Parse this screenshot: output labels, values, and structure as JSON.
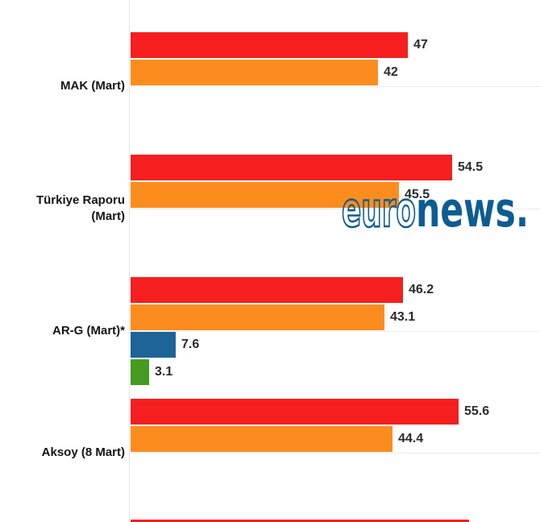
{
  "chart_data": {
    "type": "bar",
    "orientation": "horizontal",
    "title": "",
    "xlabel": "",
    "ylabel": "",
    "xlim": [
      0,
      69.4
    ],
    "grid": "light horizontal line at each category tick",
    "legend": "none",
    "series": [
      {
        "name": "red-series",
        "color": "#f51f1f"
      },
      {
        "name": "orange-series",
        "color": "#fb8d1f"
      },
      {
        "name": "blue-series",
        "color": "#1e6498"
      },
      {
        "name": "green-series",
        "color": "#449b20"
      }
    ],
    "categories": [
      {
        "label": "MAK (Mart)",
        "label_lines": [
          "MAK (Mart)"
        ],
        "values": [
          47,
          42,
          null,
          null
        ],
        "value_labels": [
          "47",
          "42",
          null,
          null
        ],
        "partial": false
      },
      {
        "label": "Türkiye Raporu (Mart)",
        "label_lines": [
          "Türkiye Raporu",
          "(Mart)"
        ],
        "values": [
          54.5,
          45.5,
          null,
          null
        ],
        "value_labels": [
          "54.5",
          "45.5",
          null,
          null
        ],
        "partial": false
      },
      {
        "label": "AR-G (Mart)*",
        "label_lines": [
          "AR-G (Mart)*"
        ],
        "values": [
          46.2,
          43.1,
          7.6,
          3.1
        ],
        "value_labels": [
          "46.2",
          "43.1",
          "7.6",
          "3.1"
        ],
        "partial": false
      },
      {
        "label": "Aksoy (8 Mart)",
        "label_lines": [
          "Aksoy (8 Mart)"
        ],
        "values": [
          55.6,
          44.4,
          null,
          null
        ],
        "value_labels": [
          "55.6",
          "44.4",
          null,
          null
        ],
        "partial": false
      },
      {
        "label": "",
        "label_lines": [],
        "values": [
          57.4,
          null,
          null,
          null
        ],
        "value_labels": [
          null,
          null,
          null,
          null
        ],
        "partial": true
      }
    ]
  },
  "watermark": {
    "outline_text": "euro",
    "solid_text": "news.",
    "color": "#0d5c92"
  }
}
